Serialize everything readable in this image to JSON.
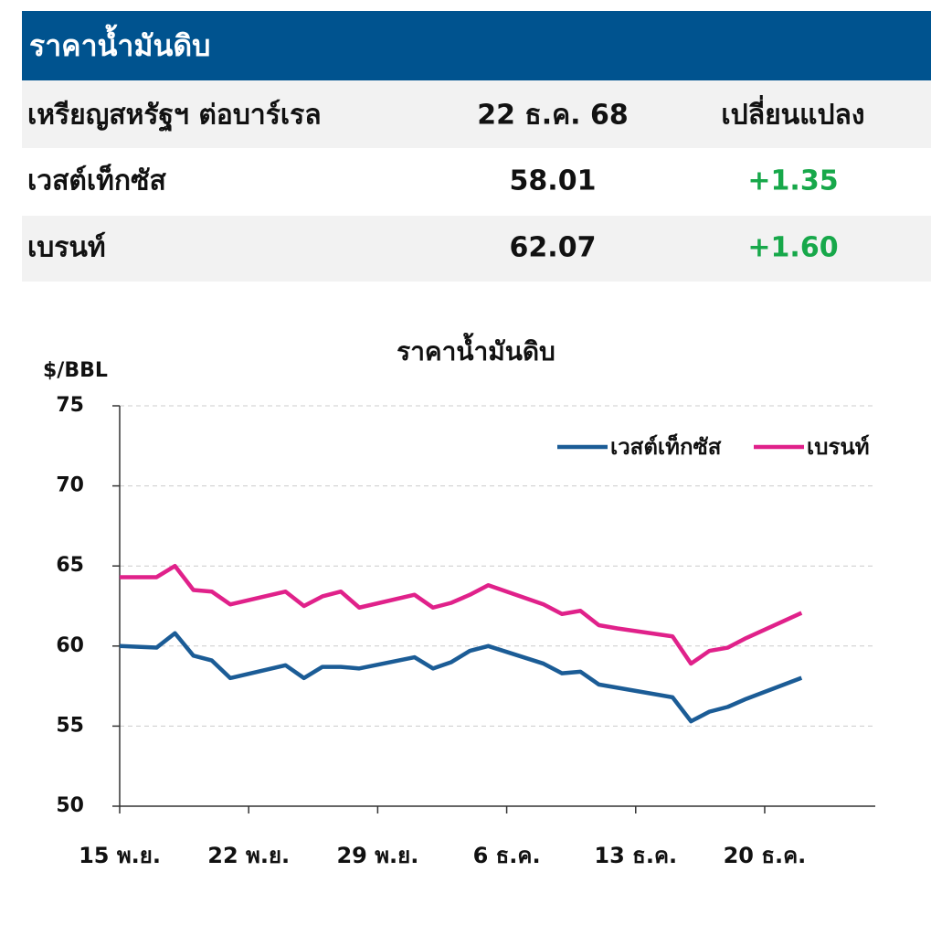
{
  "table": {
    "title": "ราคาน้ำมันดิบ",
    "columns": [
      "เหรียญสหรัฐฯ ต่อบาร์เรล",
      "22 ธ.ค. 68",
      "เปลี่ยนแปลง"
    ],
    "rows": [
      [
        "เวสต์เท็กซัส",
        "58.01",
        "+1.35"
      ],
      [
        "เบรนท์",
        "62.07",
        "+1.60"
      ]
    ],
    "change_color": "#17a84a"
  },
  "chart_data": {
    "type": "line",
    "title": "ราคาน้ำมันดิบ",
    "ylabel": "$/BBL",
    "x": [
      0,
      2,
      3,
      4,
      5,
      6,
      9,
      10,
      11,
      12,
      13,
      16,
      17,
      18,
      19,
      20,
      23,
      24,
      25,
      26,
      27,
      30,
      31,
      32,
      33,
      34,
      37
    ],
    "series": [
      {
        "name": "เวสต์เท็กซัส",
        "color": "#1b5c96",
        "values": [
          60.0,
          59.9,
          60.8,
          59.4,
          59.1,
          58.0,
          58.8,
          58.0,
          58.7,
          58.7,
          58.6,
          59.3,
          58.6,
          59.0,
          59.7,
          60.0,
          58.9,
          58.3,
          58.4,
          57.6,
          57.4,
          56.8,
          55.3,
          55.9,
          56.2,
          56.7,
          58.01
        ]
      },
      {
        "name": "เบรนท์",
        "color": "#e0218a",
        "values": [
          64.3,
          64.3,
          65.0,
          63.5,
          63.4,
          62.6,
          63.4,
          62.5,
          63.1,
          63.4,
          62.4,
          63.2,
          62.4,
          62.7,
          63.2,
          63.8,
          62.6,
          62.0,
          62.2,
          61.3,
          61.1,
          60.6,
          58.9,
          59.7,
          59.9,
          60.5,
          62.07
        ]
      }
    ],
    "xlim": [
      0,
      41
    ],
    "xticks": [
      {
        "value": 0,
        "label": "15 พ.ย."
      },
      {
        "value": 7,
        "label": "22 พ.ย."
      },
      {
        "value": 14,
        "label": "29 พ.ย."
      },
      {
        "value": 21,
        "label": "6 ธ.ค."
      },
      {
        "value": 28,
        "label": "13 ธ.ค."
      },
      {
        "value": 35,
        "label": "20 ธ.ค."
      }
    ],
    "ylim": [
      50,
      75
    ],
    "yticks": [
      50,
      55,
      60,
      65,
      70,
      75
    ],
    "grid": true,
    "legend": "upper right"
  }
}
